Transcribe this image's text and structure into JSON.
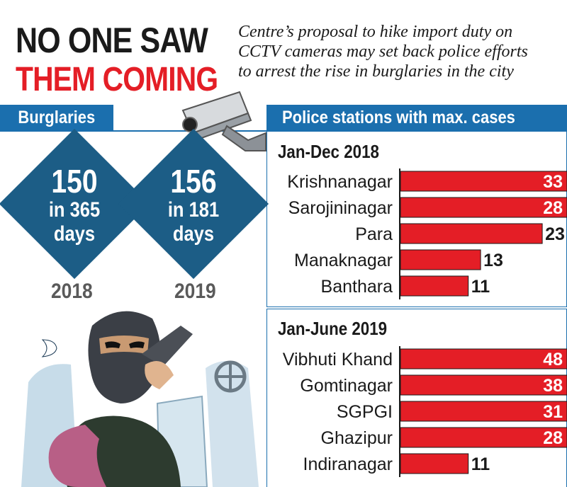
{
  "headline": {
    "line1": "NO ONE SAW",
    "line2": "THEM COMING"
  },
  "subtitle": {
    "line1": "Centre’s proposal to hike import duty on",
    "line2": "CCTV cameras may set back police efforts",
    "line3": "to arrest the rise in burglaries in the city"
  },
  "burglaries": {
    "label": "Burglaries",
    "items": [
      {
        "count": "150",
        "line1": "in 365",
        "line2": "days",
        "year": "2018"
      },
      {
        "count": "156",
        "line1": "in 181",
        "line2": "days",
        "year": "2019"
      }
    ]
  },
  "police": {
    "label": "Police stations with max. cases"
  },
  "colors": {
    "accent_red": "#e41e26",
    "band_blue": "#1b6fae",
    "diamond_blue": "#1c5d86"
  },
  "chart_data": [
    {
      "type": "bar",
      "orientation": "horizontal",
      "title": "Jan-Dec 2018",
      "categories": [
        "Krishnanagar",
        "Sarojininagar",
        "Para",
        "Manaknagar",
        "Banthara"
      ],
      "values": [
        33,
        28,
        23,
        13,
        11
      ]
    },
    {
      "type": "bar",
      "orientation": "horizontal",
      "title": "Jan-June 2019",
      "categories": [
        "Vibhuti Khand",
        "Gomtinagar",
        "SGPGI",
        "Ghazipur",
        "Indiranagar"
      ],
      "values": [
        48,
        38,
        31,
        28,
        11
      ]
    }
  ]
}
